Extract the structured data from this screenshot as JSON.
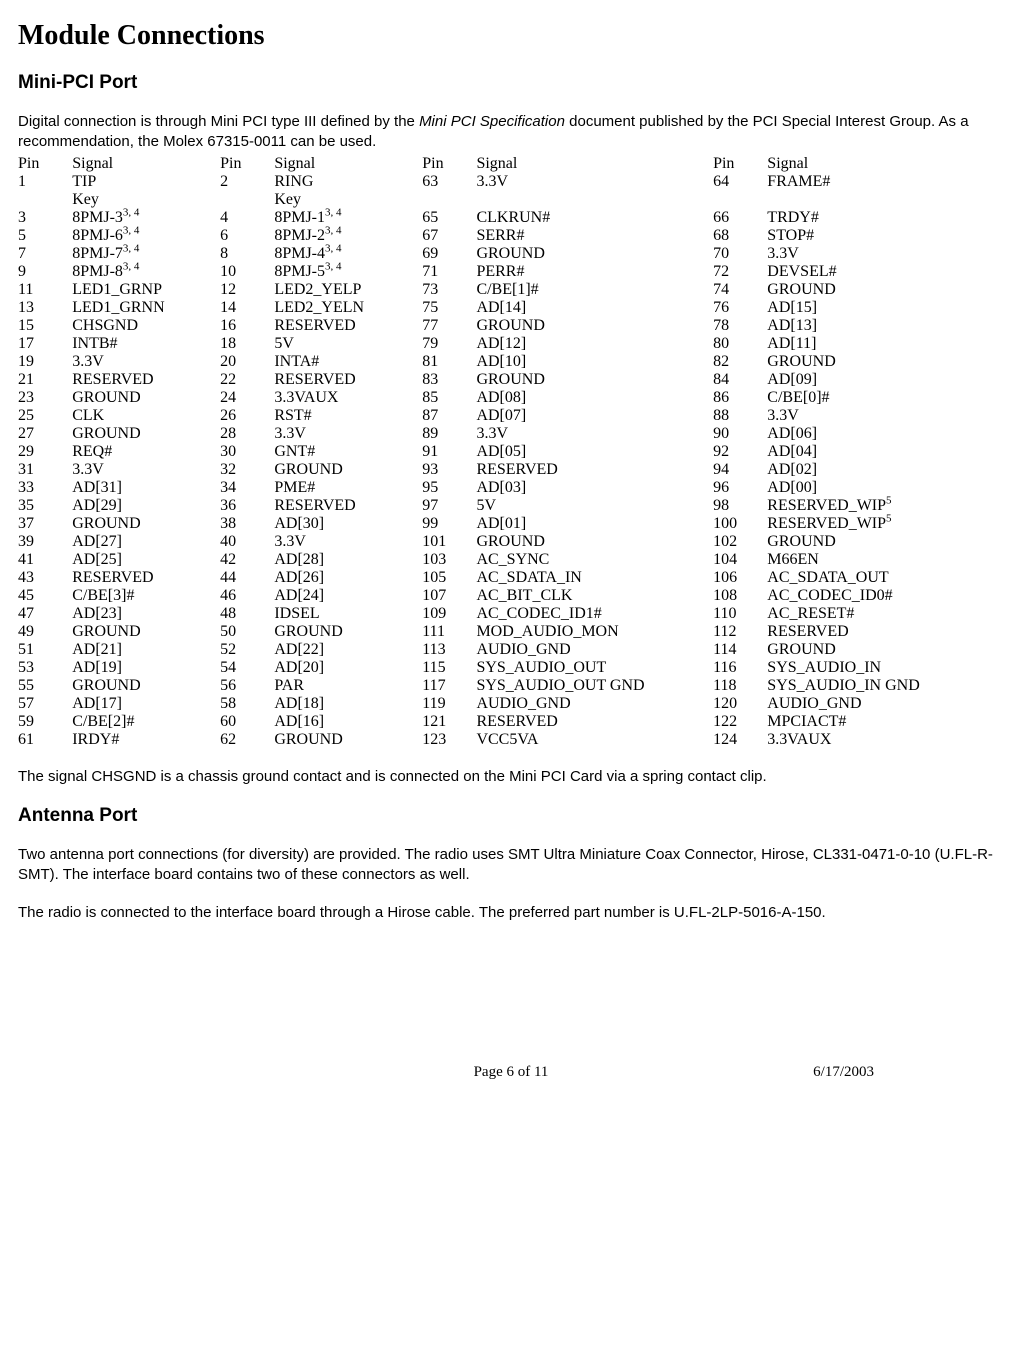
{
  "title": "Module Connections",
  "section1": {
    "heading": "Mini-PCI Port",
    "intro_a": "Digital connection is through Mini PCI type III defined by the ",
    "intro_italic": "Mini PCI Specification",
    "intro_b": " document published by the PCI Special Interest Group. As a recommendation, the Molex 67315-0011 can be used.",
    "note": "The signal CHSGND is a chassis ground contact and is connected on the Mini PCI Card via a spring contact clip."
  },
  "pintable": {
    "col_widths_pct": [
      5.5,
      15,
      5.5,
      15,
      5.5,
      24,
      5.5,
      24
    ],
    "headers": [
      "Pin",
      "Signal",
      "Pin",
      "Signal",
      "Pin",
      "Signal",
      "Pin",
      "Signal"
    ],
    "rows": [
      [
        "1",
        "TIP",
        "2",
        "RING",
        "63",
        "3.3V",
        "64",
        "FRAME#"
      ],
      [
        "",
        "Key",
        "",
        "Key",
        "",
        "",
        "",
        ""
      ],
      [
        "3",
        {
          "t": "8PMJ-3",
          "sup": "3, 4"
        },
        "4",
        {
          "t": "8PMJ-1",
          "sup": "3, 4"
        },
        "65",
        "CLKRUN#",
        "66",
        "TRDY#"
      ],
      [
        "5",
        {
          "t": "8PMJ-6",
          "sup": "3, 4"
        },
        "6",
        {
          "t": "8PMJ-2",
          "sup": "3, 4"
        },
        "67",
        "SERR#",
        "68",
        "STOP#"
      ],
      [
        "7",
        {
          "t": "8PMJ-7",
          "sup": "3, 4"
        },
        "8",
        {
          "t": "8PMJ-4",
          "sup": "3, 4"
        },
        "69",
        "GROUND",
        "70",
        "3.3V"
      ],
      [
        "9",
        {
          "t": "8PMJ-8",
          "sup": "3, 4"
        },
        "10",
        {
          "t": "8PMJ-5",
          "sup": "3, 4"
        },
        "71",
        "PERR#",
        "72",
        "DEVSEL#"
      ],
      [
        "11",
        "LED1_GRNP",
        "12",
        "LED2_YELP",
        "73",
        "C/BE[1]#",
        "74",
        "GROUND"
      ],
      [
        "13",
        "LED1_GRNN",
        "14",
        "LED2_YELN",
        "75",
        "AD[14]",
        "76",
        "AD[15]"
      ],
      [
        "15",
        "CHSGND",
        "16",
        "RESERVED",
        "77",
        "GROUND",
        "78",
        "AD[13]"
      ],
      [
        "17",
        "INTB#",
        "18",
        "5V",
        "79",
        "AD[12]",
        "80",
        "AD[11]"
      ],
      [
        "19",
        "3.3V",
        "20",
        "INTA#",
        "81",
        "AD[10]",
        "82",
        "GROUND"
      ],
      [
        "21",
        "RESERVED",
        "22",
        "RESERVED",
        "83",
        "GROUND",
        "84",
        "AD[09]"
      ],
      [
        "23",
        "GROUND",
        "24",
        "3.3VAUX",
        "85",
        "AD[08]",
        "86",
        "C/BE[0]#"
      ],
      [
        "25",
        "CLK",
        "26",
        "RST#",
        "87",
        "AD[07]",
        "88",
        "3.3V"
      ],
      [
        "27",
        "GROUND",
        "28",
        "3.3V",
        "89",
        "3.3V",
        "90",
        "AD[06]"
      ],
      [
        "29",
        "REQ#",
        "30",
        "GNT#",
        "91",
        "AD[05]",
        "92",
        "AD[04]"
      ],
      [
        "31",
        "3.3V",
        "32",
        "GROUND",
        "93",
        "RESERVED",
        "94",
        "AD[02]"
      ],
      [
        "33",
        "AD[31]",
        "34",
        "PME#",
        "95",
        "AD[03]",
        "96",
        "AD[00]"
      ],
      [
        "35",
        "AD[29]",
        "36",
        "RESERVED",
        "97",
        "5V",
        "98",
        {
          "t": "RESERVED_WIP",
          "sup": "5"
        }
      ],
      [
        "37",
        "GROUND",
        "38",
        "AD[30]",
        "99",
        "AD[01]",
        "100",
        {
          "t": "RESERVED_WIP",
          "sup": "5"
        }
      ],
      [
        "39",
        "AD[27]",
        "40",
        "3.3V",
        "101",
        "GROUND",
        "102",
        "GROUND"
      ],
      [
        "41",
        "AD[25]",
        "42",
        "AD[28]",
        "103",
        "AC_SYNC",
        "104",
        "M66EN"
      ],
      [
        "43",
        "RESERVED",
        "44",
        "AD[26]",
        "105",
        "AC_SDATA_IN",
        "106",
        "AC_SDATA_OUT"
      ],
      [
        "45",
        "C/BE[3]#",
        "46",
        "AD[24]",
        "107",
        "AC_BIT_CLK",
        "108",
        "AC_CODEC_ID0#"
      ],
      [
        "47",
        "AD[23]",
        "48",
        "IDSEL",
        "109",
        "AC_CODEC_ID1#",
        "110",
        "AC_RESET#"
      ],
      [
        "49",
        "GROUND",
        "50",
        "GROUND",
        "111",
        "MOD_AUDIO_MON",
        "112",
        "RESERVED"
      ],
      [
        "51",
        "AD[21]",
        "52",
        "AD[22]",
        "113",
        "AUDIO_GND",
        "114",
        "GROUND"
      ],
      [
        "53",
        "AD[19]",
        "54",
        "AD[20]",
        "115",
        "SYS_AUDIO_OUT",
        "116",
        "SYS_AUDIO_IN"
      ],
      [
        "55",
        "GROUND",
        "56",
        "PAR",
        "117",
        "SYS_AUDIO_OUT GND",
        "118",
        "SYS_AUDIO_IN GND"
      ],
      [
        "57",
        "AD[17]",
        "58",
        "AD[18]",
        "119",
        "AUDIO_GND",
        "120",
        "AUDIO_GND"
      ],
      [
        "59",
        "C/BE[2]#",
        "60",
        "AD[16]",
        "121",
        "RESERVED",
        "122",
        "MPCIACT#"
      ],
      [
        "61",
        "IRDY#",
        "62",
        "GROUND",
        "123",
        "VCC5VA",
        "124",
        "3.3VAUX"
      ]
    ]
  },
  "section2": {
    "heading": "Antenna Port",
    "p1": "Two antenna port connections (for diversity) are provided.  The radio uses SMT Ultra Miniature Coax Connector, Hirose, CL331-0471-0-10 (U.FL-R-SMT).  The interface board contains two of these connectors as well.",
    "p2": "The radio is connected to the interface board through a Hirose cable.  The preferred part number is U.FL-2LP-5016-A-150."
  },
  "footer": {
    "page": "Page 6 of 11",
    "date": "6/17/2003"
  }
}
